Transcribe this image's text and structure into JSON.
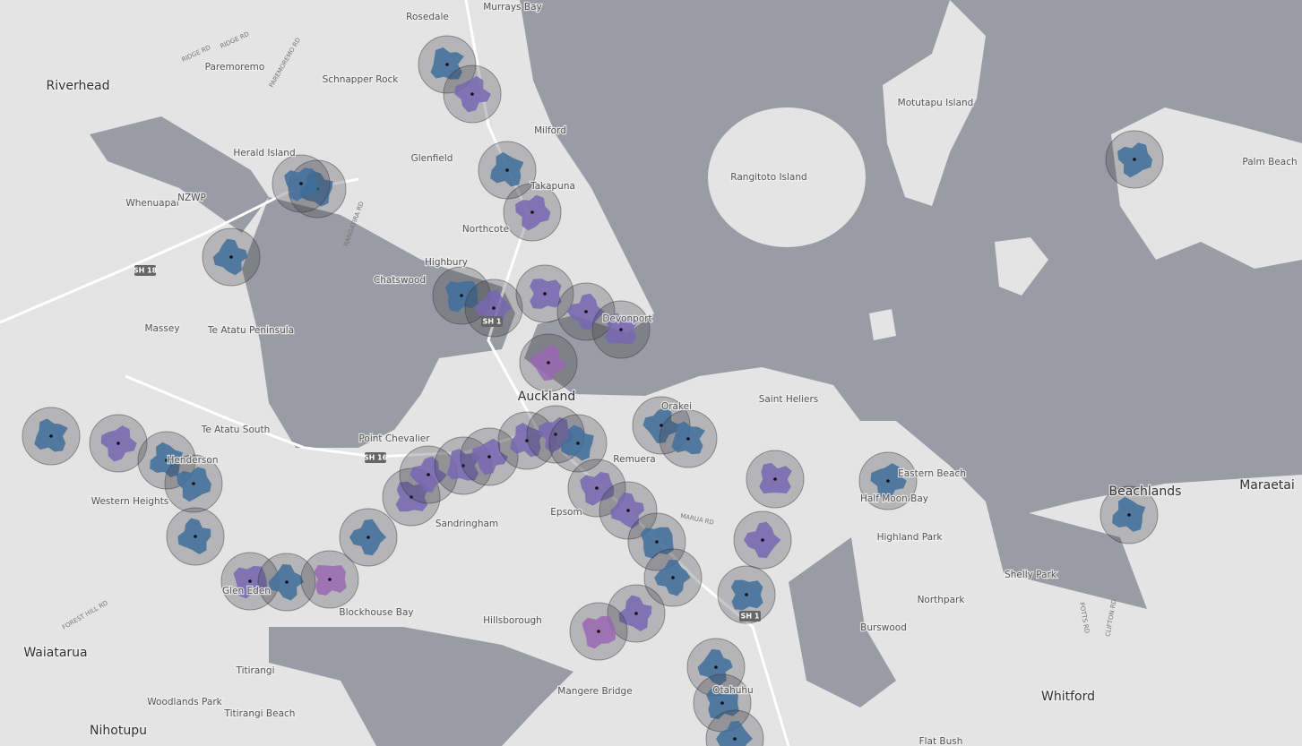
{
  "map": {
    "cities": [
      "Auckland",
      "Riverhead",
      "Beachlands",
      "Maraetai",
      "Waiatarua",
      "Whitford",
      "Nihotupu"
    ],
    "places": [
      "Rosedale",
      "Murrays Bay",
      "Paremoremo",
      "Schnapper Rock",
      "Herald Island",
      "Glenfield",
      "Milford",
      "Takapuna",
      "Whenuapai",
      "Northcote",
      "Highbury",
      "Chatswood",
      "Devonport",
      "Massey",
      "Te Atatu Peninsula",
      "Saint Heliers",
      "Orakei",
      "Te Atatu South",
      "Point Chevalier",
      "Henderson",
      "Western Heights",
      "Remuera",
      "Sandringham",
      "Epsom",
      "Eastern Beach",
      "Half Moon Bay",
      "Highland Park",
      "Glen Eden",
      "Blockhouse Bay",
      "Hillsborough",
      "Shelly Park",
      "Northpark",
      "Burswood",
      "Titirangi",
      "Woodlands Park",
      "Titirangi Beach",
      "Mangere Bridge",
      "Otahuhu",
      "Flat Bush",
      "Rangitoto Island",
      "Motutapu Island",
      "Palm Beach"
    ],
    "roads": [
      "RIDGE RD",
      "RIDGE RD",
      "PAREMOREMO RD",
      "RANGATIRA RD",
      "FOREST HILL RD",
      "MARUA RD",
      "POTTS RD",
      "CLIFTON RD"
    ],
    "highways": [
      "SH 18",
      "SH 1",
      "SH 16",
      "SH 1"
    ],
    "airport": "NZWP"
  }
}
